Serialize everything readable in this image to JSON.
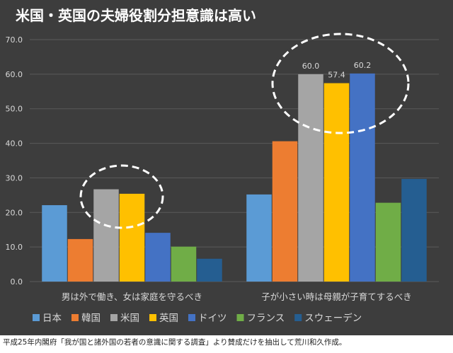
{
  "source_note": "平成25年内閣府「我が国と諸外国の若者の意識に関する調査」より賛成だけを抽出して荒川和久作成。",
  "colors": {
    "background": "#3d3d3d",
    "grid": "#5a5a5a",
    "text": "#d9d9d9",
    "title": "#ffffff",
    "highlight_ellipse": "#ffffff"
  },
  "chart_data": {
    "type": "bar",
    "title": "米国・英国の夫婦役割分担意識は高い",
    "xlabel": "",
    "ylabel": "",
    "ylim": [
      0,
      70
    ],
    "yticks": [
      "0.0",
      "10.0",
      "20.0",
      "30.0",
      "40.0",
      "50.0",
      "60.0",
      "70.0"
    ],
    "grid": true,
    "legend_position": "bottom",
    "categories": [
      "男は外で働き、女は家庭を守るべき",
      "子が小さい時は母親が子育てするべき"
    ],
    "series": [
      {
        "name": "日本",
        "color": "#5b9bd5",
        "values": [
          22.1,
          25.2
        ],
        "labels": [
          "",
          ""
        ]
      },
      {
        "name": "韓国",
        "color": "#ed7d31",
        "values": [
          12.3,
          40.6
        ],
        "labels": [
          "",
          ""
        ]
      },
      {
        "name": "米国",
        "color": "#a5a5a5",
        "values": [
          26.7,
          60.0
        ],
        "labels": [
          "",
          "60.0"
        ]
      },
      {
        "name": "英国",
        "color": "#ffc000",
        "values": [
          25.4,
          57.4
        ],
        "labels": [
          "",
          "57.4"
        ]
      },
      {
        "name": "ドイツ",
        "color": "#4472c4",
        "values": [
          14.1,
          60.2
        ],
        "labels": [
          "",
          "60.2"
        ]
      },
      {
        "name": "フランス",
        "color": "#70ad47",
        "values": [
          10.1,
          22.8
        ],
        "labels": [
          "",
          ""
        ]
      },
      {
        "name": "スウェーデン",
        "color": "#255e91",
        "values": [
          6.6,
          29.7
        ],
        "labels": [
          "",
          ""
        ]
      }
    ],
    "annotations": [
      "dashed ellipse around 米国 and 英国 in first category",
      "dashed ellipse around 米国, 英国, ドイツ in second category"
    ]
  }
}
